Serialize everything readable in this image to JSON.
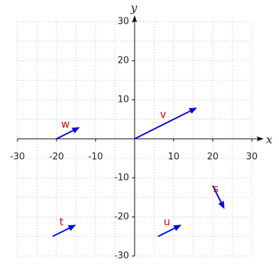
{
  "chart_data": {
    "type": "vector",
    "x_label": "x",
    "y_label": "y",
    "xlim": [
      -30,
      30
    ],
    "ylim": [
      -30,
      30
    ],
    "xticks": [
      -30,
      -20,
      -10,
      10,
      20,
      30
    ],
    "yticks": [
      -30,
      -20,
      -10,
      10,
      20,
      30
    ],
    "xgrid": [
      -30,
      -25,
      -20,
      -15,
      -10,
      -5,
      0,
      5,
      10,
      15,
      20,
      25,
      30
    ],
    "ygrid": [
      -30,
      -25,
      -20,
      -15,
      -10,
      -5,
      0,
      5,
      10,
      15,
      20,
      25,
      30
    ],
    "grid": true,
    "color": "#0000ee",
    "label_color": "#e00000",
    "vectors": [
      {
        "name": "v",
        "x": 0,
        "y": 0,
        "dx": 16,
        "dy": 8
      },
      {
        "name": "w",
        "x": -20,
        "y": 0,
        "dx": 6,
        "dy": 3
      },
      {
        "name": "s",
        "x": 20,
        "y": -12,
        "dx": 3,
        "dy": -6
      },
      {
        "name": "t",
        "x": -21,
        "y": -25,
        "dx": 6,
        "dy": 3
      },
      {
        "name": "u",
        "x": 6,
        "y": -25,
        "dx": 6,
        "dy": 3
      }
    ]
  }
}
